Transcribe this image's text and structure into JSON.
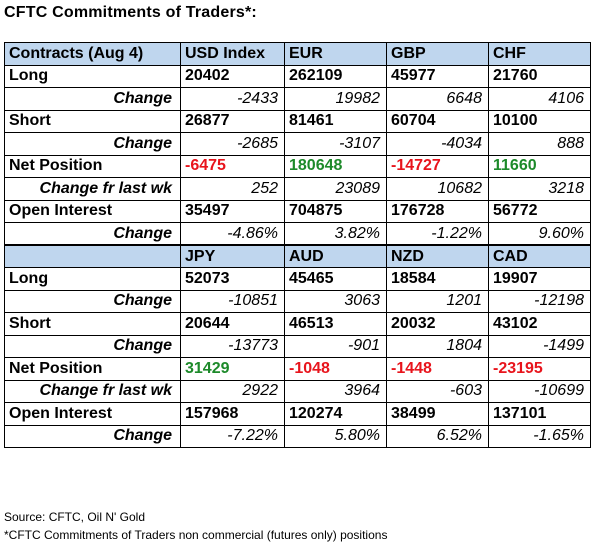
{
  "title": "CFTC Commitments of Traders*:",
  "section1": {
    "header": [
      "Contracts (Aug 4)",
      "USD Index",
      "EUR",
      "GBP",
      "CHF"
    ],
    "long": [
      "Long",
      "20402",
      "262109",
      "45977",
      "21760"
    ],
    "long_change": [
      "Change",
      "-2433",
      "19982",
      "6648",
      "4106"
    ],
    "short": [
      "Short",
      "26877",
      "81461",
      "60704",
      "10100"
    ],
    "short_change": [
      "Change",
      "-2685",
      "-3107",
      "-4034",
      "888"
    ],
    "net": [
      "Net Position",
      "-6475",
      "180648",
      "-14727",
      "11660"
    ],
    "net_change": [
      "Change fr last wk",
      "252",
      "23089",
      "10682",
      "3218"
    ],
    "oi": [
      "Open Interest",
      "35497",
      "704875",
      "176728",
      "56772"
    ],
    "oi_change": [
      "Change",
      "-4.86%",
      "3.82%",
      "-1.22%",
      "9.60%"
    ]
  },
  "section2": {
    "header": [
      "",
      "JPY",
      "AUD",
      "NZD",
      "CAD"
    ],
    "long": [
      "Long",
      "52073",
      "45465",
      "18584",
      "19907"
    ],
    "long_change": [
      "Change",
      "-10851",
      "3063",
      "1201",
      "-12198"
    ],
    "short": [
      "Short",
      "20644",
      "46513",
      "20032",
      "43102"
    ],
    "short_change": [
      "Change",
      "-13773",
      "-901",
      "1804",
      "-1499"
    ],
    "net": [
      "Net Position",
      "31429",
      "-1048",
      "-1448",
      "-23195"
    ],
    "net_change": [
      "Change fr last wk",
      "2922",
      "3964",
      "-603",
      "-10699"
    ],
    "oi": [
      "Open Interest",
      "157968",
      "120274",
      "38499",
      "137101"
    ],
    "oi_change": [
      "Change",
      "-7.22%",
      "5.80%",
      "6.52%",
      "-1.65%"
    ]
  },
  "colors": {
    "header_bg": "#bfd6ee",
    "negative": "#e8141c",
    "positive": "#1d8a2a"
  },
  "footer": {
    "source": "Source: CFTC, Oil N' Gold",
    "note": "*CFTC Commitments of Traders non commercial (futures only) positions"
  }
}
